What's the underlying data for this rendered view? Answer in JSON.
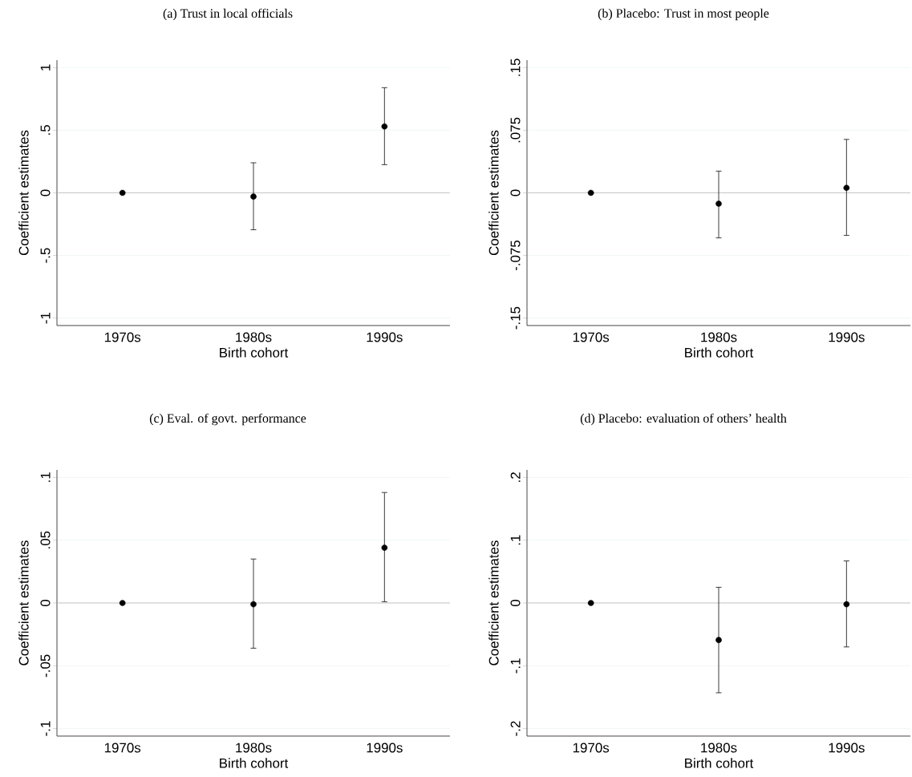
{
  "chart_data": [
    {
      "type": "scatter",
      "title": "(a) Trust in local officials",
      "xlabel": "Birth cohort",
      "ylabel": "Coefficient estimates",
      "categories": [
        "1970s",
        "1980s",
        "1990s"
      ],
      "values": [
        0,
        -0.03,
        0.53
      ],
      "errors": [
        null,
        [
          -0.295,
          0.24
        ],
        [
          0.225,
          0.84
        ]
      ],
      "color": "#000000",
      "marker": "circle",
      "ylim": [
        -1.06,
        1.06
      ],
      "yticks": [
        {
          "value": -1,
          "label": "-1"
        },
        {
          "value": -0.5,
          "label": "-.5"
        },
        0,
        {
          "value": 0.5,
          "label": ".5"
        },
        1
      ],
      "grid": "y",
      "ref_lines": [
        {
          "axis": "y",
          "value": 0,
          "color": "#c0c0c0"
        }
      ]
    },
    {
      "type": "scatter",
      "title": "(b) Placebo: Trust in most people",
      "xlabel": "Birth cohort",
      "ylabel": "Coefficient estimates",
      "categories": [
        "1970s",
        "1980s",
        "1990s"
      ],
      "values": [
        0,
        -0.013,
        0.006
      ],
      "errors": [
        null,
        [
          -0.054,
          0.026
        ],
        [
          -0.051,
          0.064
        ]
      ],
      "color": "#000000",
      "marker": "circle",
      "ylim": [
        -0.159,
        0.159
      ],
      "yticks": [
        {
          "value": -0.15,
          "label": "-.15"
        },
        {
          "value": -0.075,
          "label": "-.075"
        },
        0,
        {
          "value": 0.075,
          "label": ".075"
        },
        {
          "value": 0.15,
          "label": ".15"
        }
      ],
      "grid": "y",
      "ref_lines": [
        {
          "axis": "y",
          "value": 0,
          "color": "#c0c0c0"
        }
      ]
    },
    {
      "type": "scatter",
      "title": "(c) Eval. of govt. performance",
      "xlabel": "Birth cohort",
      "ylabel": "Coefficient estimates",
      "categories": [
        "1970s",
        "1980s",
        "1990s"
      ],
      "values": [
        0,
        -0.001,
        0.044
      ],
      "errors": [
        null,
        [
          -0.036,
          0.035
        ],
        [
          0.001,
          0.088
        ]
      ],
      "color": "#000000",
      "marker": "circle",
      "ylim": [
        -0.106,
        0.106
      ],
      "yticks": [
        {
          "value": -0.1,
          "label": "-.1"
        },
        {
          "value": -0.05,
          "label": "-.05"
        },
        0,
        {
          "value": 0.05,
          "label": ".05"
        },
        {
          "value": 0.1,
          "label": ".1"
        }
      ],
      "grid": "y",
      "ref_lines": [
        {
          "axis": "y",
          "value": 0,
          "color": "#c0c0c0"
        }
      ]
    },
    {
      "type": "scatter",
      "title": "(d) Placebo: evaluation of others’ health",
      "xlabel": "Birth cohort",
      "ylabel": "Coefficient estimates",
      "categories": [
        "1970s",
        "1980s",
        "1990s"
      ],
      "values": [
        0,
        -0.059,
        -0.002
      ],
      "errors": [
        null,
        [
          -0.143,
          0.025
        ],
        [
          -0.07,
          0.067
        ]
      ],
      "color": "#000000",
      "marker": "circle",
      "ylim": [
        -0.212,
        0.212
      ],
      "yticks": [
        {
          "value": -0.2,
          "label": "-.2"
        },
        {
          "value": -0.1,
          "label": "-.1"
        },
        0,
        {
          "value": 0.1,
          "label": ".1"
        },
        {
          "value": 0.2,
          "label": ".2"
        }
      ],
      "grid": "y",
      "ref_lines": [
        {
          "axis": "y",
          "value": 0,
          "color": "#c0c0c0"
        }
      ]
    }
  ]
}
